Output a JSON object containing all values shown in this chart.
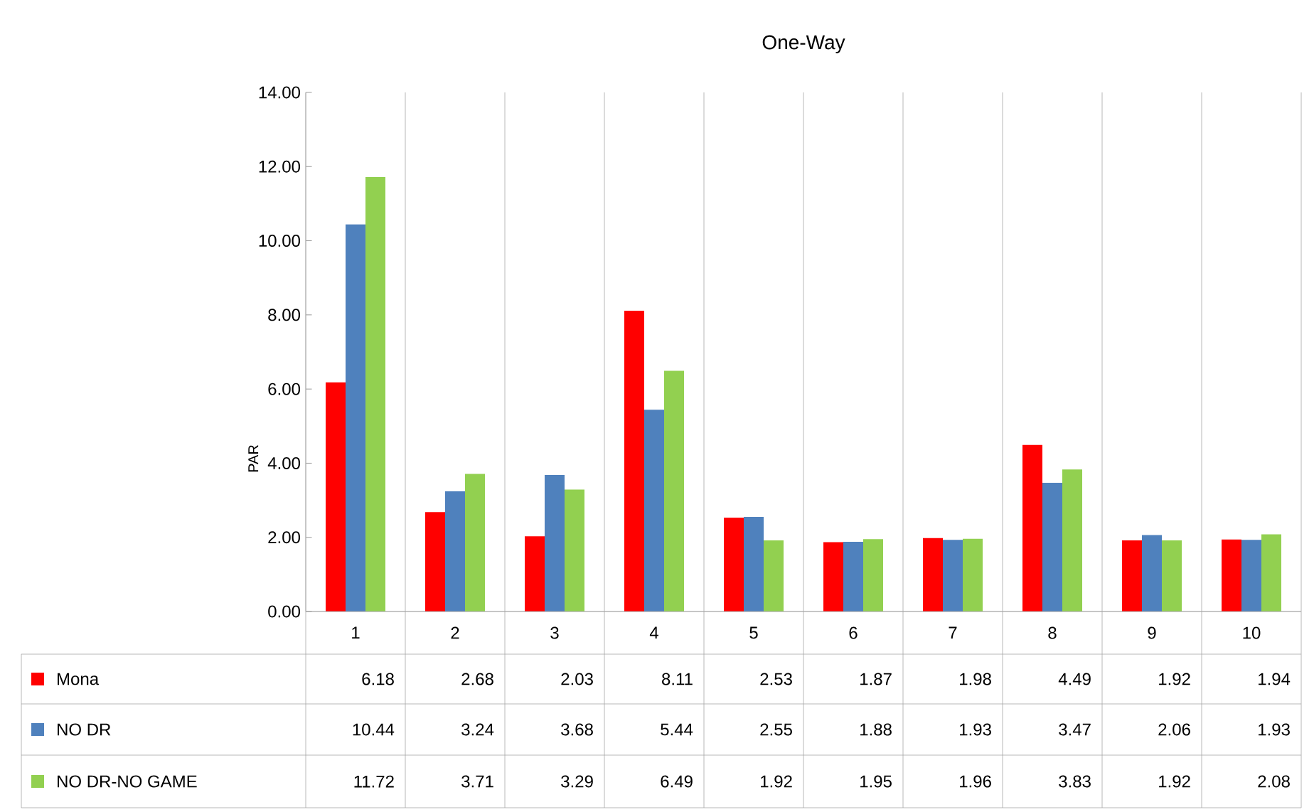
{
  "chart_data": {
    "type": "bar",
    "title": "One-Way",
    "ylabel": "PAR",
    "categories": [
      "1",
      "2",
      "3",
      "4",
      "5",
      "6",
      "7",
      "8",
      "9",
      "10"
    ],
    "series": [
      {
        "name": "Mona",
        "color": "#ff0000",
        "values": [
          6.18,
          2.68,
          2.03,
          8.11,
          2.53,
          1.87,
          1.98,
          4.49,
          1.92,
          1.94
        ]
      },
      {
        "name": "NO DR",
        "color": "#4f81bd",
        "values": [
          10.44,
          3.24,
          3.68,
          5.44,
          2.55,
          1.88,
          1.93,
          3.47,
          2.06,
          1.93
        ]
      },
      {
        "name": "NO DR-NO GAME",
        "color": "#92d050",
        "values": [
          11.72,
          3.71,
          3.29,
          6.49,
          1.92,
          1.95,
          1.96,
          3.83,
          1.92,
          2.08
        ]
      }
    ],
    "ylim": [
      0,
      14
    ],
    "yticks": [
      {
        "value": 0,
        "label": "0.00"
      },
      {
        "value": 2,
        "label": "2.00"
      },
      {
        "value": 4,
        "label": "4.00"
      },
      {
        "value": 6,
        "label": "6.00"
      },
      {
        "value": 8,
        "label": "8.00"
      },
      {
        "value": 10,
        "label": "10.00"
      },
      {
        "value": 12,
        "label": "12.00"
      },
      {
        "value": 14,
        "label": "14.00"
      }
    ],
    "data_labels": true,
    "legend": "bottom"
  }
}
